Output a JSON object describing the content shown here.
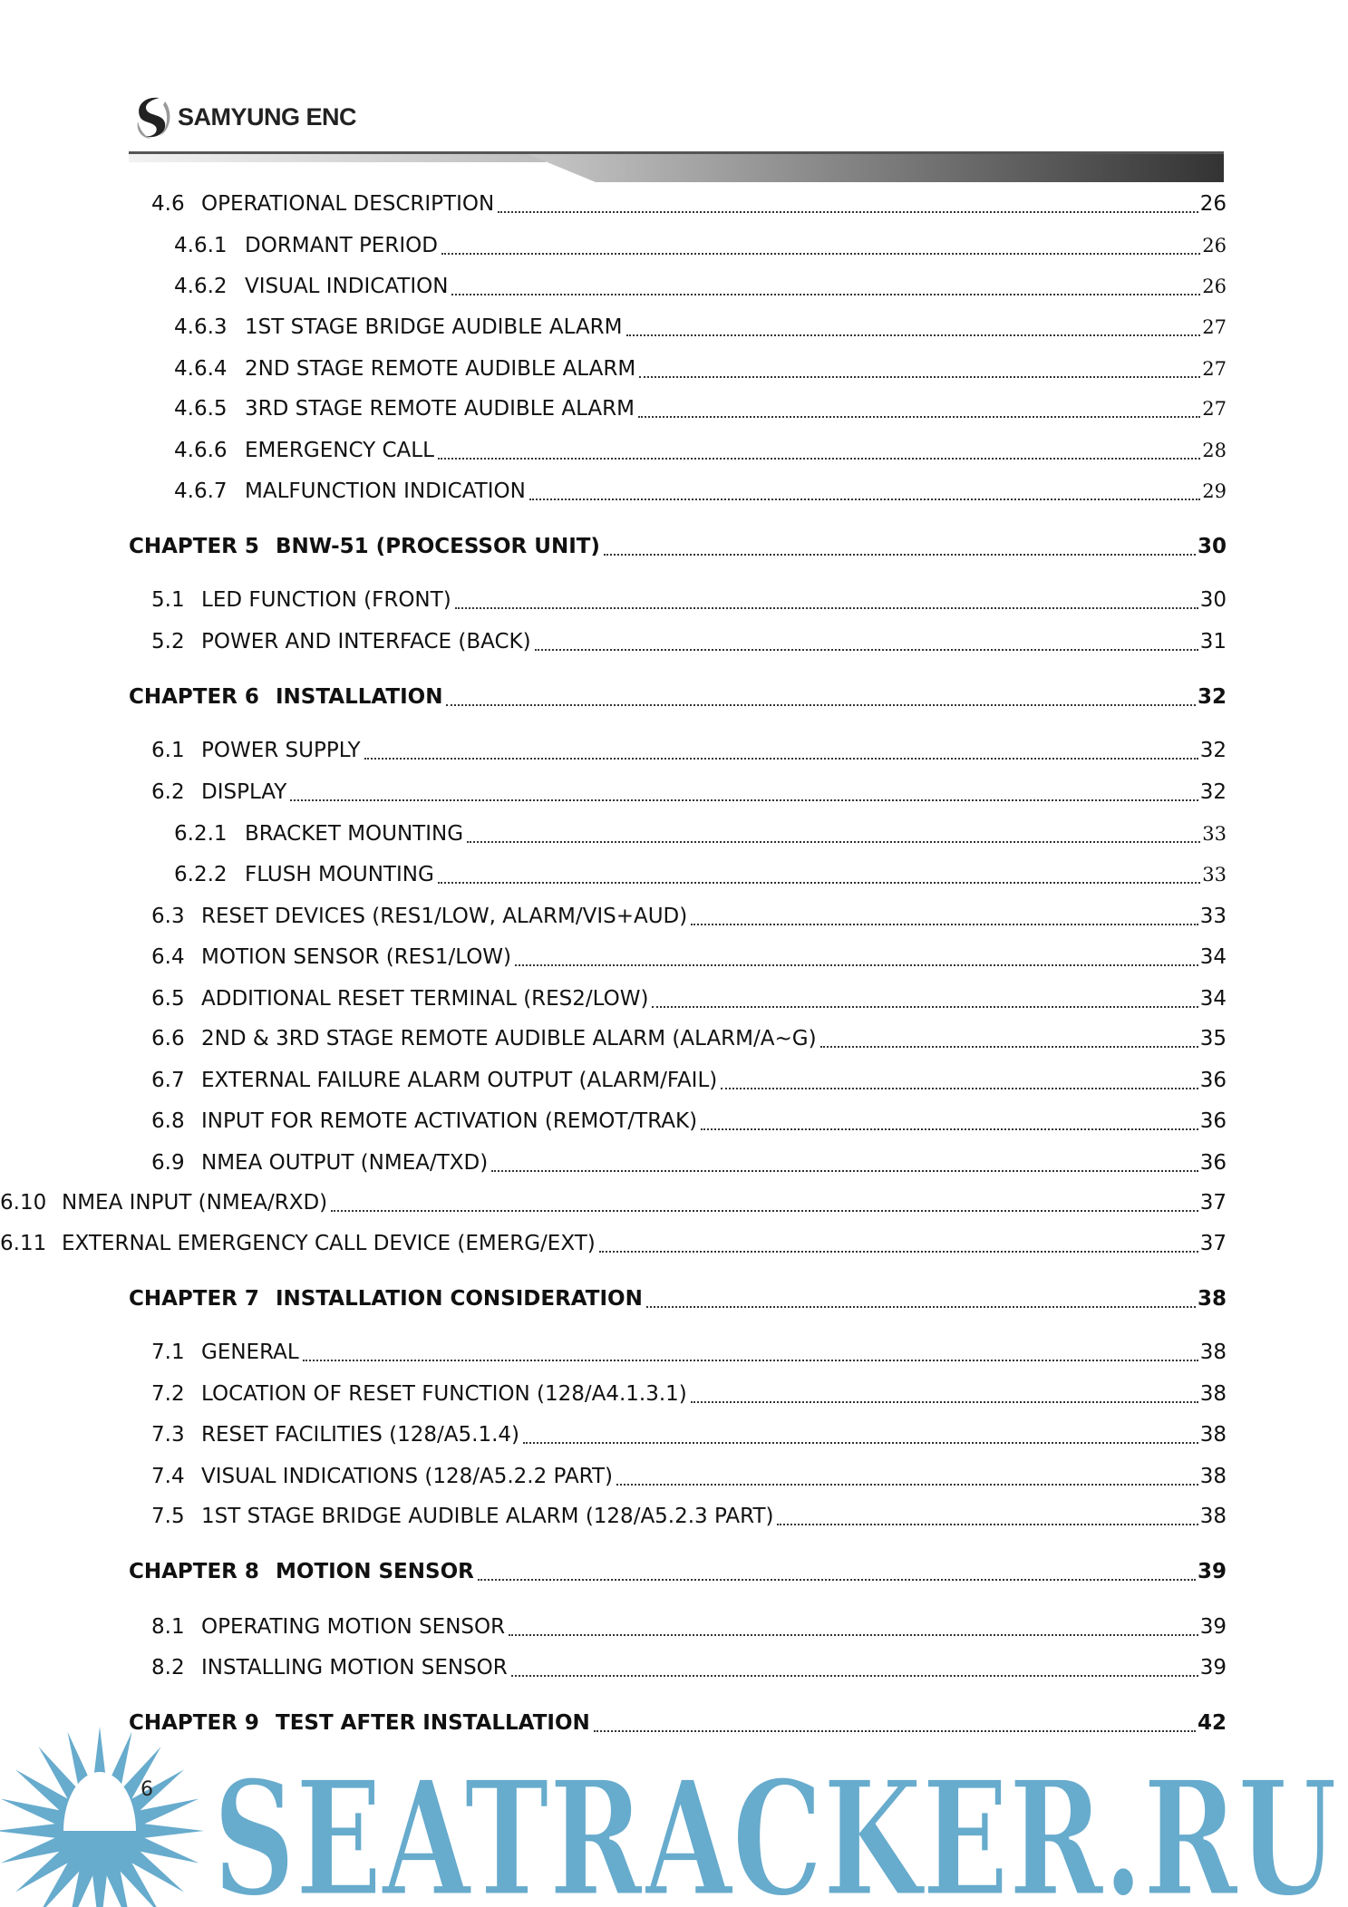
{
  "header": {
    "logo_text": "SAMYUNG ENC"
  },
  "toc": [
    {
      "level": "l1",
      "num": "4.6",
      "title": "OPERATIONAL DESCRIPTION",
      "page": "26"
    },
    {
      "level": "l2",
      "num": "4.6.1",
      "title": "DORMANT PERIOD",
      "page": "26"
    },
    {
      "level": "l2",
      "num": "4.6.2",
      "title": "VISUAL INDICATION",
      "page": "26"
    },
    {
      "level": "l2",
      "num": "4.6.3",
      "title": "1ST STAGE BRIDGE AUDIBLE ALARM",
      "page": "27"
    },
    {
      "level": "l2",
      "num": "4.6.4",
      "title": "2ND STAGE REMOTE AUDIBLE ALARM",
      "page": "27"
    },
    {
      "level": "l2",
      "num": "4.6.5",
      "title": "3RD STAGE REMOTE AUDIBLE ALARM",
      "page": "27"
    },
    {
      "level": "l2",
      "num": "4.6.6",
      "title": "EMERGENCY CALL",
      "page": "28"
    },
    {
      "level": "l2",
      "num": "4.6.7",
      "title": "MALFUNCTION INDICATION",
      "page": "29"
    },
    {
      "level": "ch",
      "num": "CHAPTER 5",
      "title": "BNW-51 (PROCESSOR UNIT)",
      "page": "30"
    },
    {
      "level": "l1",
      "num": "5.1",
      "title": "LED FUNCTION (FRONT)",
      "page": "30"
    },
    {
      "level": "l1",
      "num": "5.2",
      "title": "POWER AND INTERFACE (BACK)",
      "page": "31"
    },
    {
      "level": "ch",
      "num": "CHAPTER 6",
      "title": "INSTALLATION",
      "page": "32"
    },
    {
      "level": "l1",
      "num": "6.1",
      "title": "POWER SUPPLY",
      "page": "32"
    },
    {
      "level": "l1",
      "num": "6.2",
      "title": "DISPLAY",
      "page": "32"
    },
    {
      "level": "l2",
      "num": "6.2.1",
      "title": "BRACKET MOUNTING",
      "page": "33"
    },
    {
      "level": "l2",
      "num": "6.2.2",
      "title": "FLUSH MOUNTING",
      "page": "33"
    },
    {
      "level": "l1",
      "num": "6.3",
      "title": "RESET DEVICES (RES1/LOW, ALARM/VIS+AUD)",
      "page": "33"
    },
    {
      "level": "l1",
      "num": "6.4",
      "title": "MOTION SENSOR (RES1/LOW)",
      "page": "34"
    },
    {
      "level": "l1",
      "num": "6.5",
      "title": "ADDITIONAL RESET TERMINAL (RES2/LOW)",
      "page": "34"
    },
    {
      "level": "l1",
      "num": "6.6",
      "title": "2ND & 3RD STAGE REMOTE AUDIBLE ALARM (ALARM/A~G)",
      "page": "35"
    },
    {
      "level": "l1",
      "num": "6.7",
      "title": "EXTERNAL FAILURE ALARM OUTPUT (ALARM/FAIL)",
      "page": "36"
    },
    {
      "level": "l1",
      "num": "6.8",
      "title": "INPUT FOR REMOTE ACTIVATION (REMOT/TRAK)",
      "page": "36"
    },
    {
      "level": "l1",
      "num": "6.9",
      "title": "NMEA OUTPUT (NMEA/TXD)",
      "page": "36"
    },
    {
      "level": "l1w",
      "num": "6.10",
      "title": "NMEA INPUT (NMEA/RXD)",
      "page": "37"
    },
    {
      "level": "l1w",
      "num": "6.11",
      "title": "EXTERNAL EMERGENCY CALL DEVICE (EMERG/EXT)",
      "page": "37"
    },
    {
      "level": "ch",
      "num": "CHAPTER 7",
      "title": "INSTALLATION CONSIDERATION",
      "page": "38"
    },
    {
      "level": "l1",
      "num": "7.1",
      "title": "GENERAL",
      "page": "38"
    },
    {
      "level": "l1",
      "num": "7.2",
      "title": "LOCATION OF RESET FUNCTION (128/A4.1.3.1)",
      "page": "38"
    },
    {
      "level": "l1",
      "num": "7.3",
      "title": "RESET FACILITIES (128/A5.1.4)",
      "page": "38"
    },
    {
      "level": "l1",
      "num": "7.4",
      "title": "VISUAL INDICATIONS (128/A5.2.2 PART)",
      "page": "38"
    },
    {
      "level": "l1",
      "num": "7.5",
      "title": "1ST STAGE BRIDGE AUDIBLE ALARM (128/A5.2.3 PART)",
      "page": "38"
    },
    {
      "level": "ch",
      "num": "CHAPTER 8",
      "title": "MOTION SENSOR",
      "page": "39"
    },
    {
      "level": "l1",
      "num": "8.1",
      "title": "OPERATING MOTION SENSOR",
      "page": "39"
    },
    {
      "level": "l1",
      "num": "8.2",
      "title": "INSTALLING MOTION SENSOR",
      "page": "39"
    },
    {
      "level": "ch",
      "num": "CHAPTER 9",
      "title": "TEST AFTER INSTALLATION",
      "page": "42"
    }
  ],
  "footer": {
    "page_number": "6"
  },
  "watermark": {
    "text": "SEATRACKER.RU",
    "color": "#67abcd"
  }
}
